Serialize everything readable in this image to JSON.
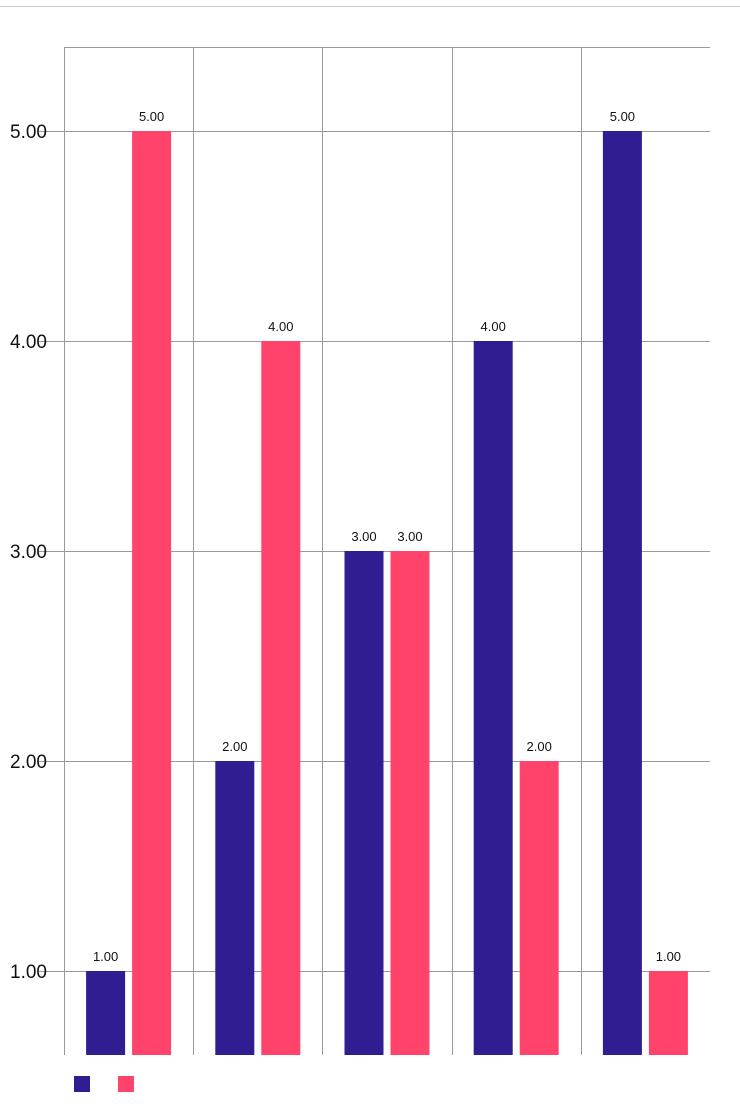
{
  "chart_data": {
    "type": "bar",
    "categories": [
      "",
      "",
      "",
      "",
      ""
    ],
    "series": [
      {
        "values": [
          1,
          2,
          3,
          4,
          5
        ],
        "color": "#311d92"
      },
      {
        "values": [
          5,
          4,
          3,
          2,
          1
        ],
        "color": "#ff436b"
      }
    ],
    "ylim": [
      0.6,
      5.4
    ],
    "yticks": [
      1,
      2,
      3,
      4,
      5
    ],
    "ytick_labels": [
      "1.00",
      "2.00",
      "3.00",
      "4.00",
      "5.00"
    ],
    "data_labels": [
      [
        "1.00",
        "2.00",
        "3.00",
        "4.00",
        "5.00"
      ],
      [
        "5.00",
        "4.00",
        "3.00",
        "2.00",
        "1.00"
      ]
    ],
    "grid": true,
    "legend_position": "bottom-left",
    "gridline_color": "#9a9a9a"
  }
}
